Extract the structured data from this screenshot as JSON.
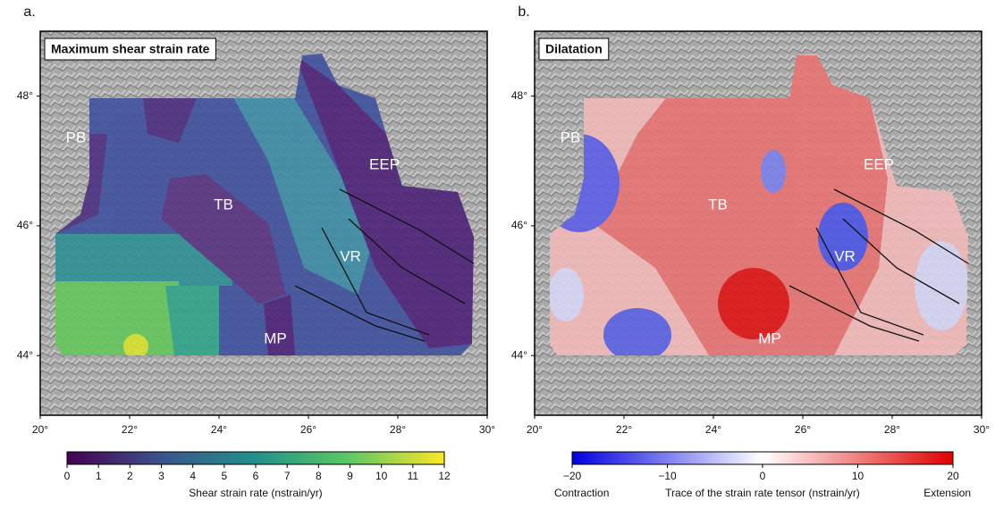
{
  "panels": [
    {
      "label": "a.",
      "title": "Maximum shear strain rate",
      "regions": [
        "PB",
        "TB",
        "EEP",
        "VR",
        "MP"
      ],
      "lon_ticks": [
        {
          "value": 20,
          "label": "20°"
        },
        {
          "value": 22,
          "label": "22°"
        },
        {
          "value": 24,
          "label": "24°"
        },
        {
          "value": 26,
          "label": "26°"
        },
        {
          "value": 28,
          "label": "28°"
        },
        {
          "value": 30,
          "label": "30°"
        }
      ],
      "lat_ticks": [
        {
          "value": 44,
          "label": "44°"
        },
        {
          "value": 46,
          "label": "46°"
        },
        {
          "value": 48,
          "label": "48°"
        }
      ],
      "colorbar": {
        "range": [
          0,
          12
        ],
        "ticks": [
          0,
          1,
          2,
          3,
          4,
          5,
          6,
          7,
          8,
          9,
          10,
          11,
          12
        ],
        "label": "Shear strain rate (nstrain/yr)"
      }
    },
    {
      "label": "b.",
      "title": "Dilatation",
      "regions": [
        "PB",
        "TB",
        "EEP",
        "VR",
        "MP"
      ],
      "lon_ticks": [
        {
          "value": 20,
          "label": "20°"
        },
        {
          "value": 22,
          "label": "22°"
        },
        {
          "value": 24,
          "label": "24°"
        },
        {
          "value": 26,
          "label": "26°"
        },
        {
          "value": 28,
          "label": "28°"
        },
        {
          "value": 30,
          "label": "30°"
        }
      ],
      "lat_ticks": [
        {
          "value": 44,
          "label": "44°"
        },
        {
          "value": 46,
          "label": "46°"
        },
        {
          "value": 48,
          "label": "48°"
        }
      ],
      "colorbar": {
        "range": [
          -20,
          20
        ],
        "ticks": [
          {
            "value": -20,
            "label": "−20"
          },
          {
            "value": -10,
            "label": "−10"
          },
          0,
          10,
          20
        ],
        "label": "Trace of the strain rate tensor (nstrain/yr)",
        "left_label": "Contraction",
        "right_label": "Extension"
      }
    }
  ],
  "lon_range": [
    20,
    30
  ],
  "lat_range": [
    43.08,
    49.0
  ]
}
